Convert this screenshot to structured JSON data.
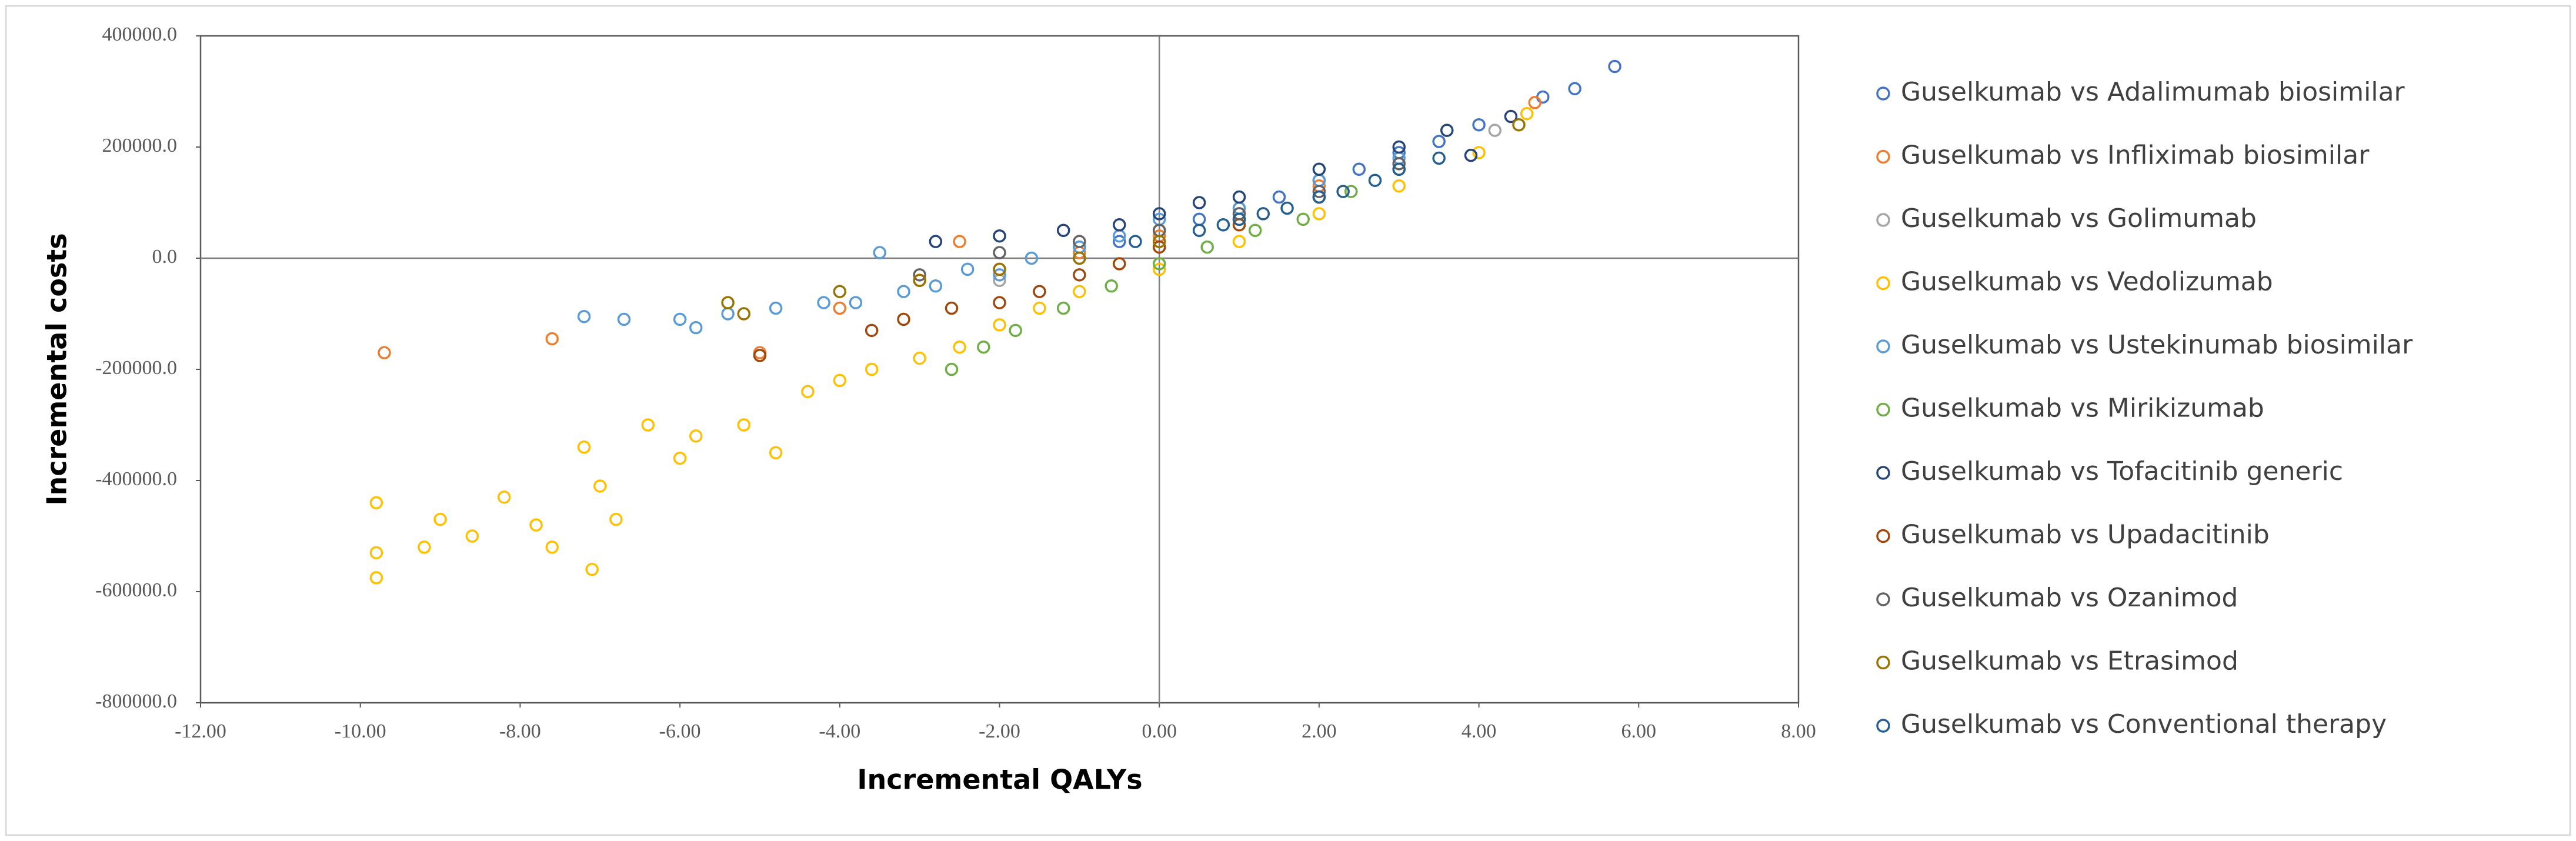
{
  "chart_data": {
    "type": "scatter",
    "x_label": "Incremental QALYs",
    "y_label": "Incremental costs",
    "xlim": [
      -12,
      8
    ],
    "ylim": [
      -800000,
      400000
    ],
    "xticks": [
      {
        "value": -12,
        "label": "-12.00"
      },
      {
        "value": -10,
        "label": "-10.00"
      },
      {
        "value": -8,
        "label": "-8.00"
      },
      {
        "value": -6,
        "label": "-6.00"
      },
      {
        "value": -4,
        "label": "-4.00"
      },
      {
        "value": -2,
        "label": "-2.00"
      },
      {
        "value": 0,
        "label": "0.00"
      },
      {
        "value": 2,
        "label": "2.00"
      },
      {
        "value": 4,
        "label": "4.00"
      },
      {
        "value": 6,
        "label": "6.00"
      },
      {
        "value": 8,
        "label": "8.00"
      }
    ],
    "yticks": [
      {
        "value": 400000,
        "label": "400000.0"
      },
      {
        "value": 200000,
        "label": "200000.0"
      },
      {
        "value": 0,
        "label": "0.0"
      },
      {
        "value": -200000,
        "label": "-200000.0"
      },
      {
        "value": -400000,
        "label": "-400000.0"
      },
      {
        "value": -600000,
        "label": "-600000.0"
      },
      {
        "value": -800000,
        "label": "-800000.0"
      }
    ],
    "legend": "right",
    "series": [
      {
        "name": "Guselkumab vs Adalimumab biosimilar",
        "color": "#4472c4",
        "x": [
          5.7,
          5.2,
          4.8,
          4.0,
          3.5,
          3.0,
          2.5,
          2.0,
          1.5,
          1.0,
          0.5,
          0,
          -0.5,
          -1.0
        ],
        "values": [
          345000,
          305000,
          290000,
          240000,
          210000,
          190000,
          160000,
          140000,
          110000,
          90000,
          70000,
          50000,
          30000,
          20000
        ]
      },
      {
        "name": "Guselkumab vs Infliximab biosimilar",
        "color": "#ed7d31",
        "x": [
          -9.7,
          -7.6,
          -5.0,
          -4.0,
          -3.0,
          -2.5,
          -2.0,
          -1.0,
          0,
          1.0,
          2.0,
          3.0,
          4.7
        ],
        "values": [
          -170000,
          -145000,
          -170000,
          -90000,
          -40000,
          30000,
          -20000,
          10000,
          40000,
          80000,
          130000,
          170000,
          280000
        ]
      },
      {
        "name": "Guselkumab vs Golimumab",
        "color": "#a5a5a5",
        "x": [
          -2.0,
          -1.0,
          0,
          1.0,
          2.0,
          3.0,
          4.2
        ],
        "values": [
          -40000,
          0,
          30000,
          70000,
          110000,
          160000,
          230000
        ]
      },
      {
        "name": "Guselkumab vs Vedolizumab",
        "color": "#ffc000",
        "x": [
          -9.8,
          -9.8,
          -9.8,
          -9.2,
          -9.0,
          -8.6,
          -8.2,
          -7.8,
          -7.6,
          -7.2,
          -7.1,
          -7.0,
          -6.8,
          -6.4,
          -6.0,
          -5.8,
          -5.2,
          -4.8,
          -4.4,
          -4.0,
          -3.6,
          -3.0,
          -2.5,
          -2.0,
          -1.5,
          -1.0,
          0,
          1.0,
          2.0,
          3.0,
          4.0,
          4.6
        ],
        "values": [
          -440000,
          -575000,
          -530000,
          -520000,
          -470000,
          -500000,
          -430000,
          -480000,
          -520000,
          -340000,
          -560000,
          -410000,
          -470000,
          -300000,
          -360000,
          -320000,
          -300000,
          -350000,
          -240000,
          -220000,
          -200000,
          -180000,
          -160000,
          -120000,
          -90000,
          -60000,
          -20000,
          30000,
          80000,
          130000,
          190000,
          260000
        ]
      },
      {
        "name": "Guselkumab vs Ustekinumab biosimilar",
        "color": "#5b9bd5",
        "x": [
          -7.2,
          -6.7,
          -6.0,
          -5.8,
          -5.4,
          -4.8,
          -4.2,
          -3.8,
          -3.5,
          -3.2,
          -2.8,
          -2.4,
          -2.0,
          -1.6,
          -1.0,
          -0.5,
          0,
          1.0,
          2.0,
          3.0
        ],
        "values": [
          -105000,
          -110000,
          -110000,
          -125000,
          -100000,
          -90000,
          -80000,
          -80000,
          10000,
          -60000,
          -50000,
          -20000,
          -30000,
          0,
          20000,
          40000,
          70000,
          90000,
          140000,
          180000
        ]
      },
      {
        "name": "Guselkumab vs Mirikizumab",
        "color": "#70ad47",
        "x": [
          -2.6,
          -2.2,
          -1.8,
          -1.2,
          -0.6,
          0,
          0.6,
          1.2,
          1.8,
          2.4
        ],
        "values": [
          -200000,
          -160000,
          -130000,
          -90000,
          -50000,
          -10000,
          20000,
          50000,
          70000,
          120000
        ]
      },
      {
        "name": "Guselkumab vs Tofacitinib generic",
        "color": "#264478",
        "x": [
          -2.8,
          -2.0,
          -1.2,
          -0.5,
          0,
          0.5,
          1.0,
          2.0,
          3.0,
          3.6,
          3.9,
          4.4
        ],
        "values": [
          30000,
          40000,
          50000,
          60000,
          80000,
          100000,
          110000,
          160000,
          200000,
          230000,
          185000,
          255000
        ]
      },
      {
        "name": "Guselkumab vs Upadacitinib",
        "color": "#9e480e",
        "x": [
          -5.0,
          -3.6,
          -3.2,
          -2.6,
          -2.0,
          -1.5,
          -1.0,
          -0.5,
          0,
          1.0,
          2.0
        ],
        "values": [
          -175000,
          -130000,
          -110000,
          -90000,
          -80000,
          -60000,
          -30000,
          -10000,
          20000,
          60000,
          110000
        ]
      },
      {
        "name": "Guselkumab vs Ozanimod",
        "color": "#636363",
        "x": [
          -3.0,
          -2.0,
          -1.0,
          0,
          1.0,
          2.0,
          3.0
        ],
        "values": [
          -30000,
          10000,
          30000,
          50000,
          80000,
          120000,
          170000
        ]
      },
      {
        "name": "Guselkumab vs Etrasimod",
        "color": "#997300",
        "x": [
          -5.4,
          -5.2,
          -4.0,
          -3.0,
          -2.0,
          -1.0,
          0,
          1.0,
          2.0,
          3.0,
          4.5
        ],
        "values": [
          -80000,
          -100000,
          -60000,
          -40000,
          -20000,
          0,
          30000,
          70000,
          110000,
          160000,
          240000
        ]
      },
      {
        "name": "Guselkumab vs Conventional therapy",
        "color": "#255e91",
        "x": [
          0.5,
          0.8,
          1.0,
          1.3,
          1.6,
          2.0,
          2.3,
          2.7,
          3.0,
          3.5,
          -0.3
        ],
        "values": [
          50000,
          60000,
          70000,
          80000,
          90000,
          110000,
          120000,
          140000,
          160000,
          180000,
          30000
        ]
      }
    ]
  }
}
